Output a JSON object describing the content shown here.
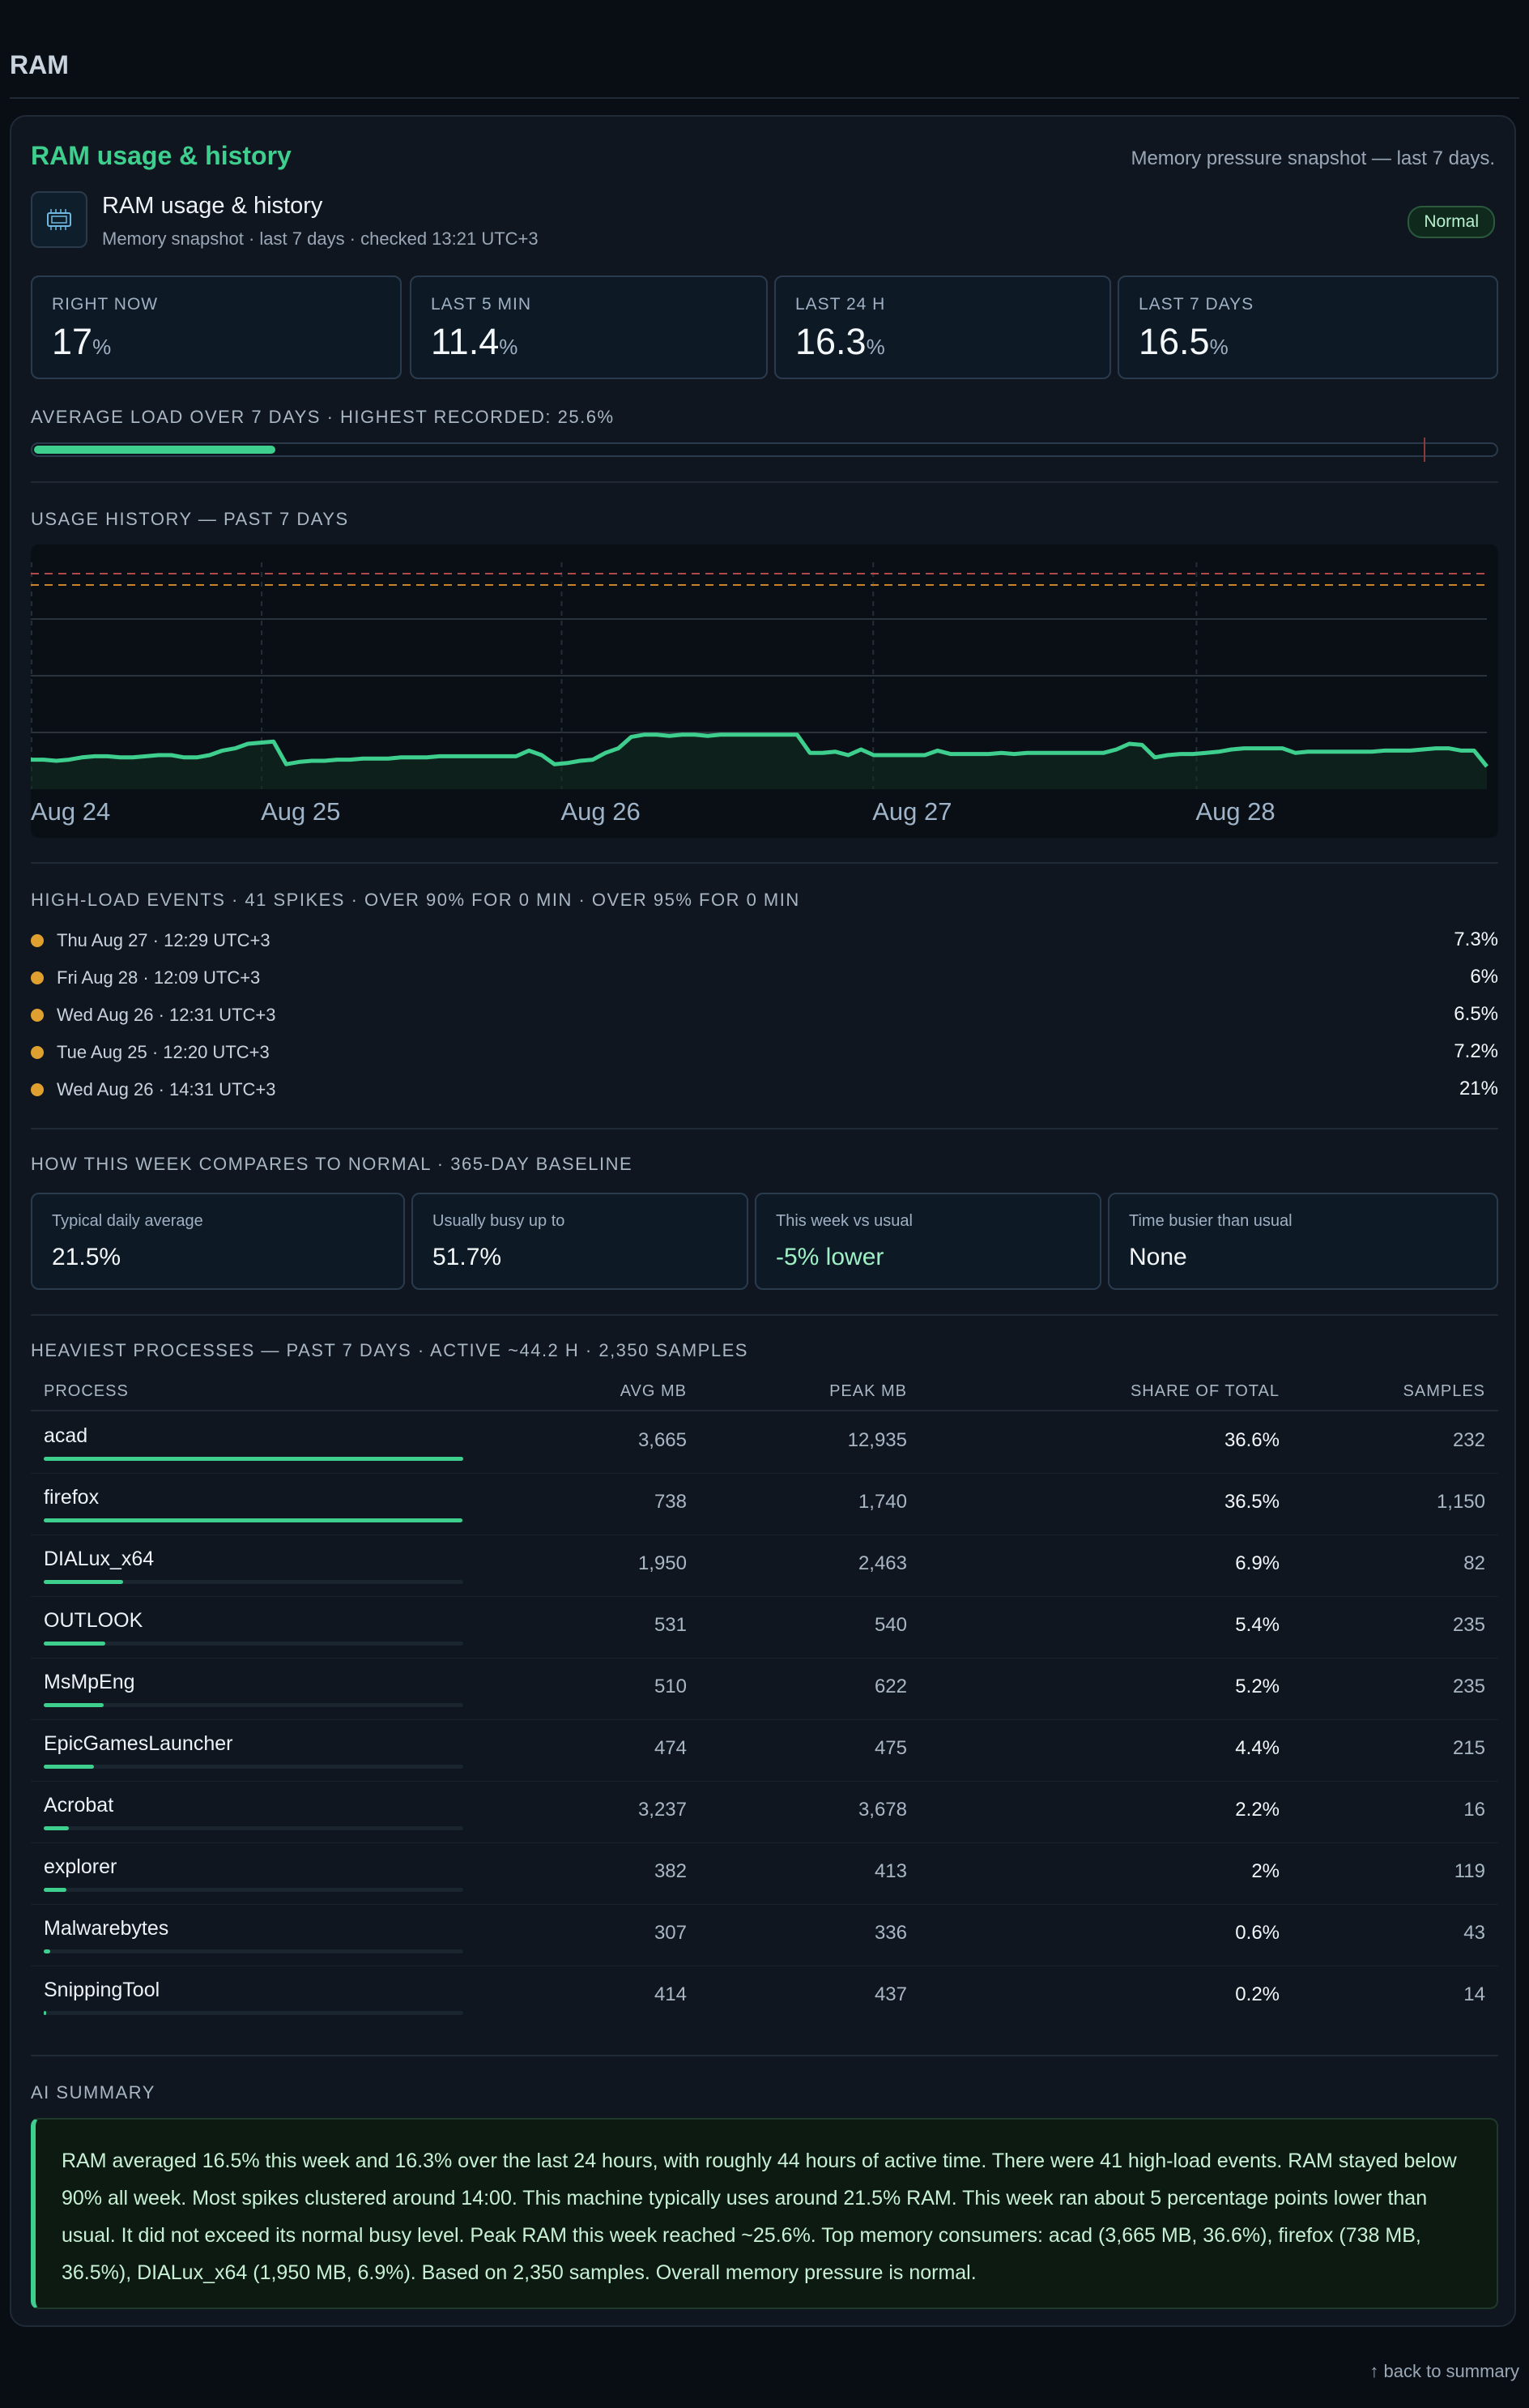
{
  "page": {
    "heading": "RAM",
    "back_link": "↑ back to summary"
  },
  "card": {
    "title": "RAM usage & history",
    "subtitle": "Memory pressure snapshot — last 7 days."
  },
  "identity": {
    "icon": "memory-chip-icon",
    "title": "RAM usage & history",
    "meta": "Memory snapshot · last 7 days · checked 13:21 UTC+3",
    "badge": "Normal"
  },
  "stats": [
    {
      "label": "RIGHT NOW",
      "value": "17",
      "unit": "%"
    },
    {
      "label": "LAST 5 MIN",
      "value": "11.4",
      "unit": "%"
    },
    {
      "label": "LAST 24 H",
      "value": "16.3",
      "unit": "%"
    },
    {
      "label": "LAST 7 DAYS",
      "value": "16.5",
      "unit": "%"
    }
  ],
  "average_load": {
    "label": "AVERAGE LOAD OVER 7 DAYS  ·  HIGHEST RECORDED: 25.6%",
    "average_percent": 16.5,
    "peak_percent": 95
  },
  "history": {
    "label": "USAGE HISTORY — PAST 7 DAYS"
  },
  "chart_data": {
    "type": "area",
    "x_tick_labels": [
      "Aug 24",
      "Aug 25",
      "Aug 26",
      "Aug 27",
      "Aug 28"
    ],
    "x_tick_positions": [
      0,
      0.158,
      0.364,
      0.578,
      0.8
    ],
    "ylim": [
      0,
      100
    ],
    "reference_lines": [
      {
        "value": 95,
        "color": "#b04a4a"
      },
      {
        "value": 90,
        "color": "#c8822a"
      }
    ],
    "grid_values": [
      25,
      50,
      75
    ],
    "series": [
      {
        "color": "#3ecf8e",
        "values": [
          13,
          13,
          12.5,
          13,
          14,
          14.5,
          14.5,
          14,
          14,
          14.5,
          15,
          15,
          14,
          14,
          15,
          17,
          18,
          20,
          20.5,
          21,
          11,
          12,
          12.5,
          12.5,
          13,
          13,
          13.5,
          13.5,
          13.5,
          14,
          14,
          14,
          14.5,
          14.5,
          14.5,
          14.5,
          14.5,
          14.5,
          14.5,
          17,
          15,
          11,
          11.5,
          12.5,
          13,
          16,
          18,
          23,
          24,
          24,
          23.5,
          24,
          24,
          23.5,
          24,
          24,
          24,
          24,
          24,
          24,
          24,
          16,
          16,
          16.5,
          15,
          17.5,
          15,
          15,
          15,
          15,
          15,
          17,
          15.5,
          15.5,
          15.5,
          15.5,
          16,
          15.5,
          16,
          16,
          16,
          16,
          16,
          16,
          16,
          17.5,
          20,
          19.5,
          14,
          15,
          15.5,
          15.5,
          16,
          16.5,
          17.5,
          18,
          18,
          18,
          18,
          16,
          16.5,
          16.5,
          16.5,
          16.5,
          16.5,
          16.5,
          17,
          17,
          17,
          17.5,
          18,
          18,
          17,
          17,
          10
        ]
      }
    ]
  },
  "events": {
    "label": "HIGH-LOAD EVENTS  ·  41 SPIKES  ·  OVER 90% FOR 0 MIN  ·  OVER 95% FOR 0 MIN",
    "items": [
      {
        "time": "Thu Aug 27 · 12:29 UTC+3",
        "value": "7.3%"
      },
      {
        "time": "Fri Aug 28 · 12:09 UTC+3",
        "value": "6%"
      },
      {
        "time": "Wed Aug 26 · 12:31 UTC+3",
        "value": "6.5%"
      },
      {
        "time": "Tue Aug 25 · 12:20 UTC+3",
        "value": "7.2%"
      },
      {
        "time": "Wed Aug 26 · 14:31 UTC+3",
        "value": "21%"
      }
    ]
  },
  "baseline": {
    "label": "HOW THIS WEEK COMPARES TO NORMAL  ·  365-DAY BASELINE",
    "items": [
      {
        "label": "Typical daily average",
        "value": "21.5%"
      },
      {
        "label": "Usually busy up to",
        "value": "51.7%"
      },
      {
        "label": "This week vs usual",
        "value": "-5% lower"
      },
      {
        "label": "Time busier than usual",
        "value": "None"
      }
    ]
  },
  "processes": {
    "label": "HEAVIEST PROCESSES — PAST 7 DAYS  ·  ACTIVE ~44.2 H  ·  2,350 SAMPLES",
    "columns": {
      "process": "PROCESS",
      "avg": "AVG MB",
      "peak": "PEAK MB",
      "share": "SHARE OF TOTAL",
      "samples": "SAMPLES"
    },
    "rows": [
      {
        "name": "acad",
        "avg": "3,665",
        "peak": "12,935",
        "share": "36.6%",
        "share_value": 36.6,
        "samples": "232"
      },
      {
        "name": "firefox",
        "avg": "738",
        "peak": "1,740",
        "share": "36.5%",
        "share_value": 36.5,
        "samples": "1,150"
      },
      {
        "name": "DIALux_x64",
        "avg": "1,950",
        "peak": "2,463",
        "share": "6.9%",
        "share_value": 6.9,
        "samples": "82"
      },
      {
        "name": "OUTLOOK",
        "avg": "531",
        "peak": "540",
        "share": "5.4%",
        "share_value": 5.4,
        "samples": "235"
      },
      {
        "name": "MsMpEng",
        "avg": "510",
        "peak": "622",
        "share": "5.2%",
        "share_value": 5.2,
        "samples": "235"
      },
      {
        "name": "EpicGamesLauncher",
        "avg": "474",
        "peak": "475",
        "share": "4.4%",
        "share_value": 4.4,
        "samples": "215"
      },
      {
        "name": "Acrobat",
        "avg": "3,237",
        "peak": "3,678",
        "share": "2.2%",
        "share_value": 2.2,
        "samples": "16"
      },
      {
        "name": "explorer",
        "avg": "382",
        "peak": "413",
        "share": "2%",
        "share_value": 2,
        "samples": "119"
      },
      {
        "name": "Malwarebytes",
        "avg": "307",
        "peak": "336",
        "share": "0.6%",
        "share_value": 0.6,
        "samples": "43"
      },
      {
        "name": "SnippingTool",
        "avg": "414",
        "peak": "437",
        "share": "0.2%",
        "share_value": 0.2,
        "samples": "14"
      }
    ]
  },
  "summary": {
    "label": "AI SUMMARY",
    "text": "RAM averaged 16.5% this week and 16.3% over the last 24 hours, with roughly 44 hours of active time. There were 41 high-load events. RAM stayed below 90% all week. Most spikes clustered around 14:00. This machine typically uses around 21.5% RAM. This week ran about 5 percentage points lower than usual. It did not exceed its normal busy level. Peak RAM this week reached ~25.6%. Top memory consumers: acad (3,665 MB, 36.6%), firefox (738 MB, 36.5%), DIALux_x64 (1,950 MB, 6.9%). Based on 2,350 samples. Overall memory pressure is normal."
  }
}
